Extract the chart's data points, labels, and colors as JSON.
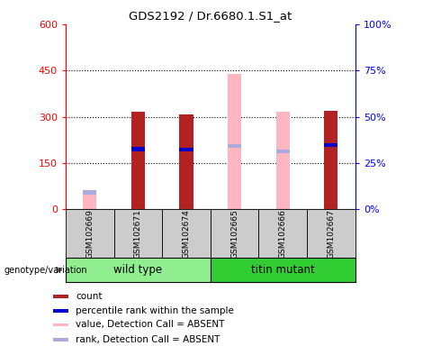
{
  "title": "GDS2192 / Dr.6680.1.S1_at",
  "samples": [
    "GSM102669",
    "GSM102671",
    "GSM102674",
    "GSM102665",
    "GSM102666",
    "GSM102667"
  ],
  "groups": [
    "wild type",
    "wild type",
    "wild type",
    "titin mutant",
    "titin mutant",
    "titin mutant"
  ],
  "count_values": [
    5,
    315,
    308,
    0,
    0,
    320
  ],
  "rank_values": [
    0,
    195,
    193,
    0,
    0,
    207
  ],
  "absent_value": [
    50,
    0,
    0,
    440,
    315,
    0
  ],
  "absent_rank": [
    55,
    0,
    0,
    205,
    188,
    0
  ],
  "is_absent": [
    true,
    false,
    false,
    true,
    true,
    false
  ],
  "color_count_present": "#B22222",
  "color_rank_present": "#0000CC",
  "color_count_absent": "#FFB6C1",
  "color_rank_absent": "#AAAADD",
  "ylim_left": [
    0,
    600
  ],
  "ylim_right": [
    0,
    100
  ],
  "yticks_left": [
    0,
    150,
    300,
    450,
    600
  ],
  "yticks_right": [
    0,
    25,
    50,
    75,
    100
  ],
  "wt_color": "#90EE90",
  "tm_color": "#32CD32",
  "legend_items": [
    {
      "label": "count",
      "color": "#B22222"
    },
    {
      "label": "percentile rank within the sample",
      "color": "#0000CC"
    },
    {
      "label": "value, Detection Call = ABSENT",
      "color": "#FFB6C1"
    },
    {
      "label": "rank, Detection Call = ABSENT",
      "color": "#AAAADD"
    }
  ]
}
